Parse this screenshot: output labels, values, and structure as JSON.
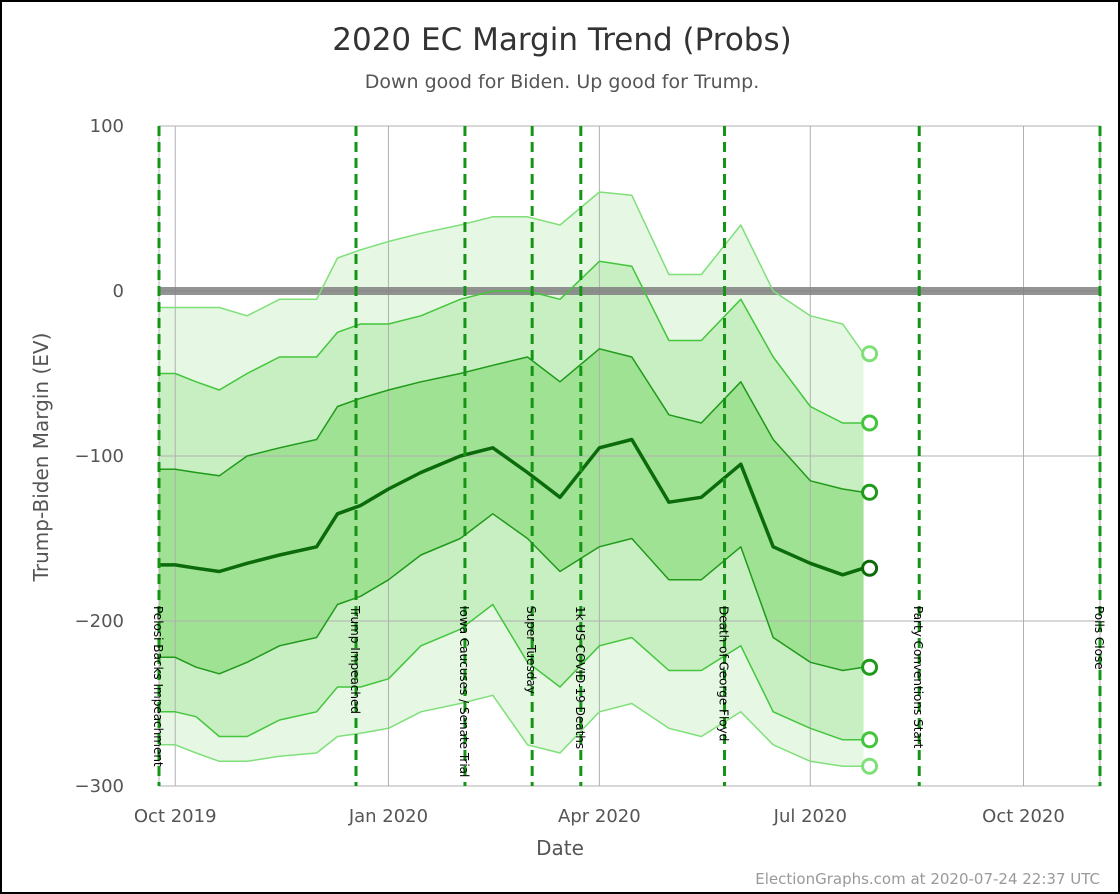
{
  "chart_data": {
    "type": "area",
    "title": "2020 EC Margin Trend (Probs)",
    "subtitle": "Down good for Biden. Up good for Trump.",
    "xlabel": "Date",
    "ylabel": "Trump-Biden Margin (EV)",
    "credit": "ElectionGraphs.com at 2020-07-24 22:37 UTC",
    "x_range": [
      "2019-09-24",
      "2020-11-03"
    ],
    "ylim": [
      -300,
      100
    ],
    "grid": true,
    "y_ticks": [
      {
        "value": 100,
        "label": "100"
      },
      {
        "value": 0,
        "label": "0"
      },
      {
        "value": -100,
        "label": "−100"
      },
      {
        "value": -200,
        "label": "−200"
      },
      {
        "value": -300,
        "label": "−300"
      }
    ],
    "x_ticks": [
      {
        "date": "2019-10-01",
        "label": "Oct 2019"
      },
      {
        "date": "2020-01-01",
        "label": "Jan 2020"
      },
      {
        "date": "2020-04-01",
        "label": "Apr 2020"
      },
      {
        "date": "2020-07-01",
        "label": "Jul 2020"
      },
      {
        "date": "2020-10-01",
        "label": "Oct 2020"
      }
    ],
    "tie_line": 0,
    "events": [
      {
        "date": "2019-09-24",
        "label": "Pelosi Backs Impeachment"
      },
      {
        "date": "2019-12-18",
        "label": "Trump Impeached"
      },
      {
        "date": "2020-02-03",
        "label": "Iowa Caucuses / Senate Trial"
      },
      {
        "date": "2020-03-03",
        "label": "Super Tuesday"
      },
      {
        "date": "2020-03-24",
        "label": "1k US COVID-19 Deaths"
      },
      {
        "date": "2020-05-25",
        "label": "Death of George Floyd"
      },
      {
        "date": "2020-08-17",
        "label": "Party Conventions Start"
      },
      {
        "date": "2020-11-03",
        "label": "Polls Close"
      }
    ],
    "dates": [
      "2019-09-24",
      "2019-10-01",
      "2019-10-10",
      "2019-10-20",
      "2019-11-01",
      "2019-11-15",
      "2019-12-01",
      "2019-12-10",
      "2019-12-20",
      "2020-01-01",
      "2020-01-15",
      "2020-02-01",
      "2020-02-15",
      "2020-03-01",
      "2020-03-15",
      "2020-04-01",
      "2020-04-15",
      "2020-05-01",
      "2020-05-15",
      "2020-06-01",
      "2020-06-15",
      "2020-07-01",
      "2020-07-15",
      "2020-07-24"
    ],
    "series": [
      {
        "role": "max",
        "values": [
          -10,
          -10,
          -10,
          -10,
          -15,
          -5,
          -5,
          20,
          25,
          30,
          35,
          40,
          45,
          45,
          40,
          60,
          58,
          10,
          10,
          40,
          0,
          -15,
          -20,
          -38
        ]
      },
      {
        "role": "+2σ",
        "values": [
          -50,
          -50,
          -55,
          -60,
          -50,
          -40,
          -40,
          -25,
          -20,
          -20,
          -15,
          -5,
          0,
          0,
          -5,
          18,
          15,
          -30,
          -30,
          -5,
          -40,
          -70,
          -80,
          -80
        ]
      },
      {
        "role": "+1σ",
        "values": [
          -108,
          -108,
          -110,
          -112,
          -100,
          -95,
          -90,
          -70,
          -65,
          -60,
          -55,
          -50,
          -45,
          -40,
          -55,
          -35,
          -40,
          -75,
          -80,
          -55,
          -90,
          -115,
          -120,
          -122
        ]
      },
      {
        "role": "mean",
        "values": [
          -166,
          -166,
          -168,
          -170,
          -165,
          -160,
          -155,
          -135,
          -130,
          -120,
          -110,
          -100,
          -95,
          -110,
          -125,
          -95,
          -90,
          -128,
          -125,
          -105,
          -155,
          -165,
          -172,
          -168
        ]
      },
      {
        "role": "−1σ",
        "values": [
          -222,
          -222,
          -228,
          -232,
          -225,
          -215,
          -210,
          -190,
          -185,
          -175,
          -160,
          -150,
          -135,
          -150,
          -170,
          -155,
          -150,
          -175,
          -175,
          -155,
          -210,
          -225,
          -230,
          -228
        ]
      },
      {
        "role": "−2σ",
        "values": [
          -255,
          -255,
          -258,
          -270,
          -270,
          -260,
          -255,
          -240,
          -240,
          -235,
          -215,
          -205,
          -190,
          -225,
          -240,
          -215,
          -210,
          -230,
          -230,
          -215,
          -255,
          -265,
          -272,
          -272
        ]
      },
      {
        "role": "min",
        "values": [
          -275,
          -275,
          -280,
          -285,
          -285,
          -282,
          -280,
          -270,
          -268,
          -265,
          -255,
          -250,
          -245,
          -275,
          -280,
          -255,
          -250,
          -265,
          -270,
          -255,
          -275,
          -285,
          -288,
          -288
        ]
      }
    ],
    "colors": {
      "band_outer": "#e6f7e4",
      "band_mid": "#c8efc2",
      "band_inner": "#9fe293",
      "line_outer": "#7fe07a",
      "line_mid": "#43c63c",
      "line_inner": "#1f9a1a",
      "mean_line": "#0b6b0b",
      "event_line": "#159415",
      "tie_line": "#808080",
      "grid": "#b0b0b0"
    }
  }
}
